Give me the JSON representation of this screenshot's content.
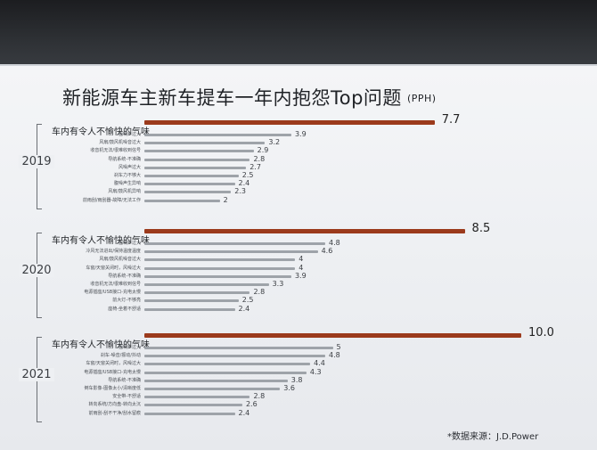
{
  "title": "新能源车主新车提车一年内抱怨Top问题",
  "unit": "(PPH)",
  "source": "*数据来源：J.D.Power",
  "colors": {
    "top_bar": "#9b3a1c",
    "other_bar": "#9ea3a9"
  },
  "chart_data": [
    {
      "type": "bar",
      "group": "2019",
      "categories": [
        "车内有令人不愉快的气味",
        "胎噪声过大",
        "风扇/鼓风机噪音过大",
        "收音机无法/很难收到信号",
        "导航系统-不准确",
        "风噪声过大",
        "刹车力不够大",
        "腹噪声生异响",
        "风扇/鼓风机异响",
        "前雨刮/雨刮器-故障/无法工作"
      ],
      "values": [
        7.7,
        3.9,
        3.2,
        2.9,
        2.8,
        2.7,
        2.5,
        2.4,
        2.3,
        2
      ]
    },
    {
      "type": "bar",
      "group": "2020",
      "categories": [
        "车内有令人不愉快的气味",
        "胎噪声过大",
        "冷风无法进出/保持温度温度",
        "风扇/鼓风机噪音过大",
        "车窗/天窗关闭时，风噪过大",
        "导航系统-不准确",
        "收音机无法/很难收到信号",
        "电源插座/USB接口-充电太慢",
        "前大灯-不够亮",
        "座椅-坐着不舒适"
      ],
      "values": [
        8.5,
        4.8,
        4.6,
        4,
        4,
        3.9,
        3.3,
        2.8,
        2.5,
        2.4
      ]
    },
    {
      "type": "bar",
      "group": "2021",
      "categories": [
        "车内有令人不愉快的气味",
        "胎噪声过大",
        "刹车-噪音/振动/抖动",
        "车窗/天窗关闭时，风噪过大",
        "电源插座/USB接口-充电太慢",
        "导航系统-不准确",
        "倒车影像-图像太小/清晰度低",
        "安全带-不舒适",
        "转向系统/方向盘-转向太沉",
        "前雨刮-刮不干净/刮水留痕"
      ],
      "values": [
        10.0,
        5,
        4.8,
        4.4,
        4.3,
        3.8,
        3.6,
        2.8,
        2.6,
        2.4
      ]
    }
  ]
}
